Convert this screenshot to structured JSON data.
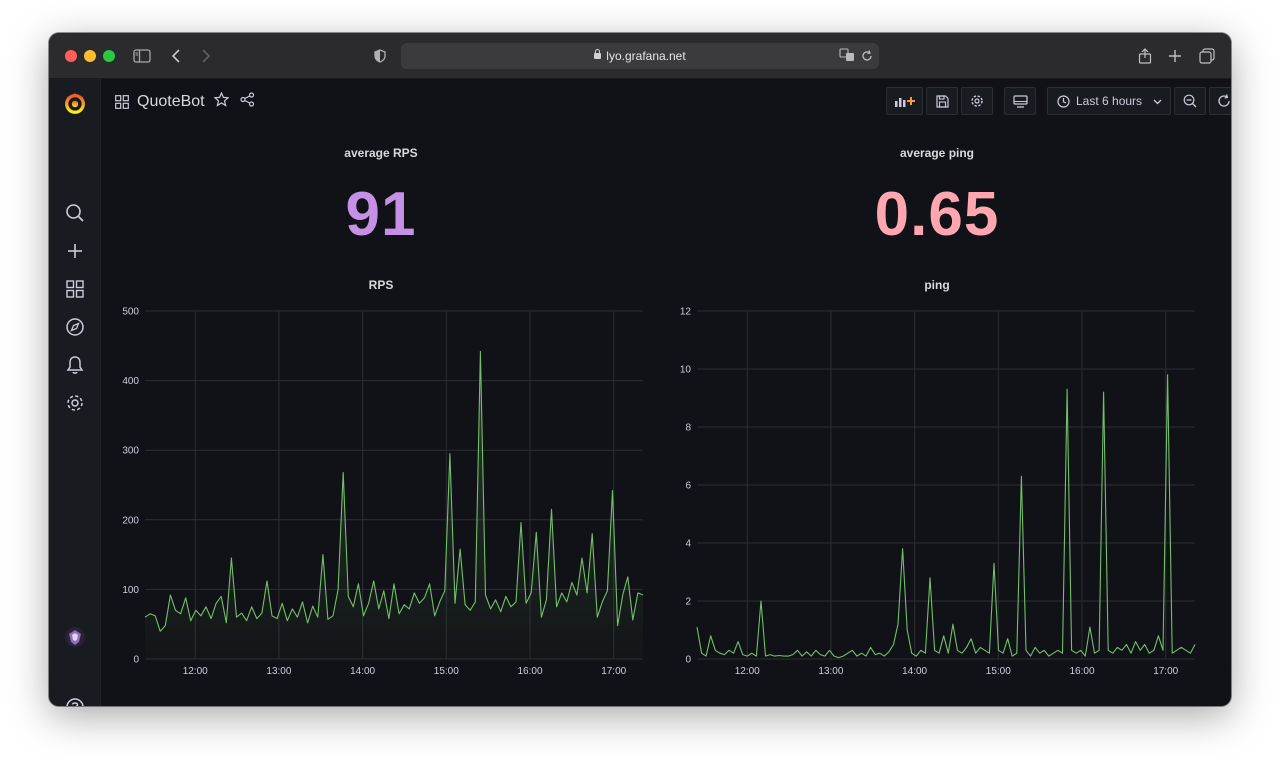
{
  "browser": {
    "url": "lyo.grafana.net"
  },
  "dashboard": {
    "title": "QuoteBot",
    "time_range_label": "Last 6 hours"
  },
  "stats": {
    "rps": {
      "title": "average RPS",
      "value": "91",
      "color": "#c690e6"
    },
    "ping": {
      "title": "average ping",
      "value": "0.65",
      "color": "#ffa6b0"
    }
  },
  "colors": {
    "series": "#73bf69",
    "grid": "#2c2e33"
  },
  "chart_data": [
    {
      "type": "area",
      "title": "RPS",
      "x_ticks": [
        "12:00",
        "13:00",
        "14:00",
        "15:00",
        "16:00",
        "17:00"
      ],
      "y_ticks": [
        "0",
        "100",
        "200",
        "300",
        "400",
        "500"
      ],
      "ylim": [
        0,
        500
      ],
      "x_range_hours": [
        11.4,
        17.35
      ],
      "series": [
        {
          "values": [
            60,
            65,
            62,
            40,
            48,
            92,
            70,
            65,
            88,
            55,
            70,
            62,
            75,
            58,
            80,
            90,
            52,
            145,
            60,
            66,
            55,
            75,
            58,
            66,
            112,
            62,
            58,
            80,
            55,
            72,
            60,
            82,
            52,
            76,
            60,
            150,
            57,
            62,
            100,
            268,
            90,
            75,
            108,
            62,
            80,
            112,
            72,
            98,
            58,
            108,
            65,
            78,
            72,
            95,
            80,
            88,
            108,
            62,
            82,
            98,
            295,
            80,
            158,
            78,
            70,
            82,
            442,
            92,
            72,
            85,
            68,
            90,
            75,
            82,
            196,
            80,
            95,
            182,
            60,
            85,
            215,
            75,
            95,
            82,
            110,
            92,
            145,
            95,
            180,
            60,
            82,
            98,
            242,
            48,
            92,
            118,
            56,
            95,
            92
          ]
        }
      ]
    },
    {
      "type": "line",
      "title": "ping",
      "x_ticks": [
        "12:00",
        "13:00",
        "14:00",
        "15:00",
        "16:00",
        "17:00"
      ],
      "y_ticks": [
        "0",
        "2",
        "4",
        "6",
        "8",
        "10",
        "12"
      ],
      "ylim": [
        0,
        12
      ],
      "x_range_hours": [
        11.4,
        17.35
      ],
      "series": [
        {
          "values": [
            1.1,
            0.2,
            0.1,
            0.8,
            0.3,
            0.2,
            0.15,
            0.3,
            0.2,
            0.6,
            0.15,
            0.1,
            0.2,
            0.1,
            2.0,
            0.1,
            0.15,
            0.1,
            0.12,
            0.1,
            0.1,
            0.15,
            0.3,
            0.1,
            0.25,
            0.1,
            0.3,
            0.15,
            0.1,
            0.3,
            0.1,
            0.05,
            0.1,
            0.2,
            0.3,
            0.1,
            0.2,
            0.1,
            0.4,
            0.15,
            0.2,
            0.1,
            0.25,
            0.5,
            1.2,
            3.8,
            1.0,
            0.2,
            0.1,
            0.3,
            0.2,
            2.8,
            0.3,
            0.2,
            0.8,
            0.2,
            1.2,
            0.3,
            0.2,
            0.4,
            0.7,
            0.2,
            0.4,
            0.3,
            0.2,
            3.3,
            0.3,
            0.2,
            0.7,
            0.1,
            0.2,
            6.3,
            0.3,
            0.1,
            0.4,
            0.2,
            0.3,
            0.1,
            0.2,
            0.3,
            0.2,
            9.3,
            0.3,
            0.2,
            0.3,
            0.1,
            1.1,
            0.2,
            0.3,
            9.2,
            0.3,
            0.2,
            0.4,
            0.3,
            0.5,
            0.2,
            0.6,
            0.3,
            0.5,
            0.2,
            0.3,
            0.8,
            0.3,
            9.8,
            0.2,
            0.3,
            0.4,
            0.3,
            0.2,
            0.5
          ]
        }
      ]
    }
  ]
}
